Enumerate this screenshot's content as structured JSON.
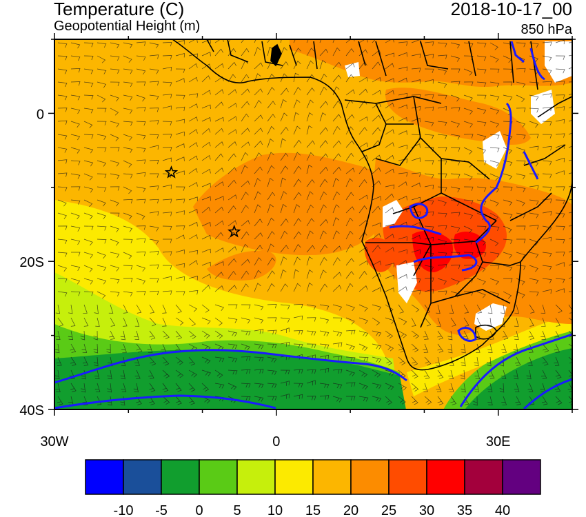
{
  "header": {
    "title": "Temperature (C)",
    "subtitle": "Geopotential Height (m)",
    "datetime": "2018-10-17_00",
    "level": "850 hPa"
  },
  "map": {
    "lon_range": [
      -30,
      40
    ],
    "lat_range": [
      -40,
      10
    ],
    "x_ticks": [
      {
        "lon": -30,
        "label": "30W"
      },
      {
        "lon": 0,
        "label": "0"
      },
      {
        "lon": 30,
        "label": "30E"
      }
    ],
    "y_ticks": [
      {
        "lat": 0,
        "label": "0"
      },
      {
        "lat": -20,
        "label": "20S"
      },
      {
        "lat": -40,
        "label": "40S"
      }
    ],
    "markers": [
      {
        "type": "star",
        "lon": -14.2,
        "lat": -8.0
      },
      {
        "type": "star",
        "lon": -5.7,
        "lat": -16.0
      }
    ],
    "contour_color": "#1a1aff",
    "border_color": "#000000"
  },
  "colorbar": {
    "colors": [
      "#0000ff",
      "#1a4f9a",
      "#119e2e",
      "#5acb16",
      "#c6ef0c",
      "#fcea00",
      "#fcb600",
      "#fc8c00",
      "#ff4c00",
      "#ff0000",
      "#a3003c",
      "#630080"
    ],
    "labels": [
      "-10",
      "-5",
      "0",
      "5",
      "10",
      "15",
      "20",
      "25",
      "30",
      "35",
      "40"
    ]
  }
}
